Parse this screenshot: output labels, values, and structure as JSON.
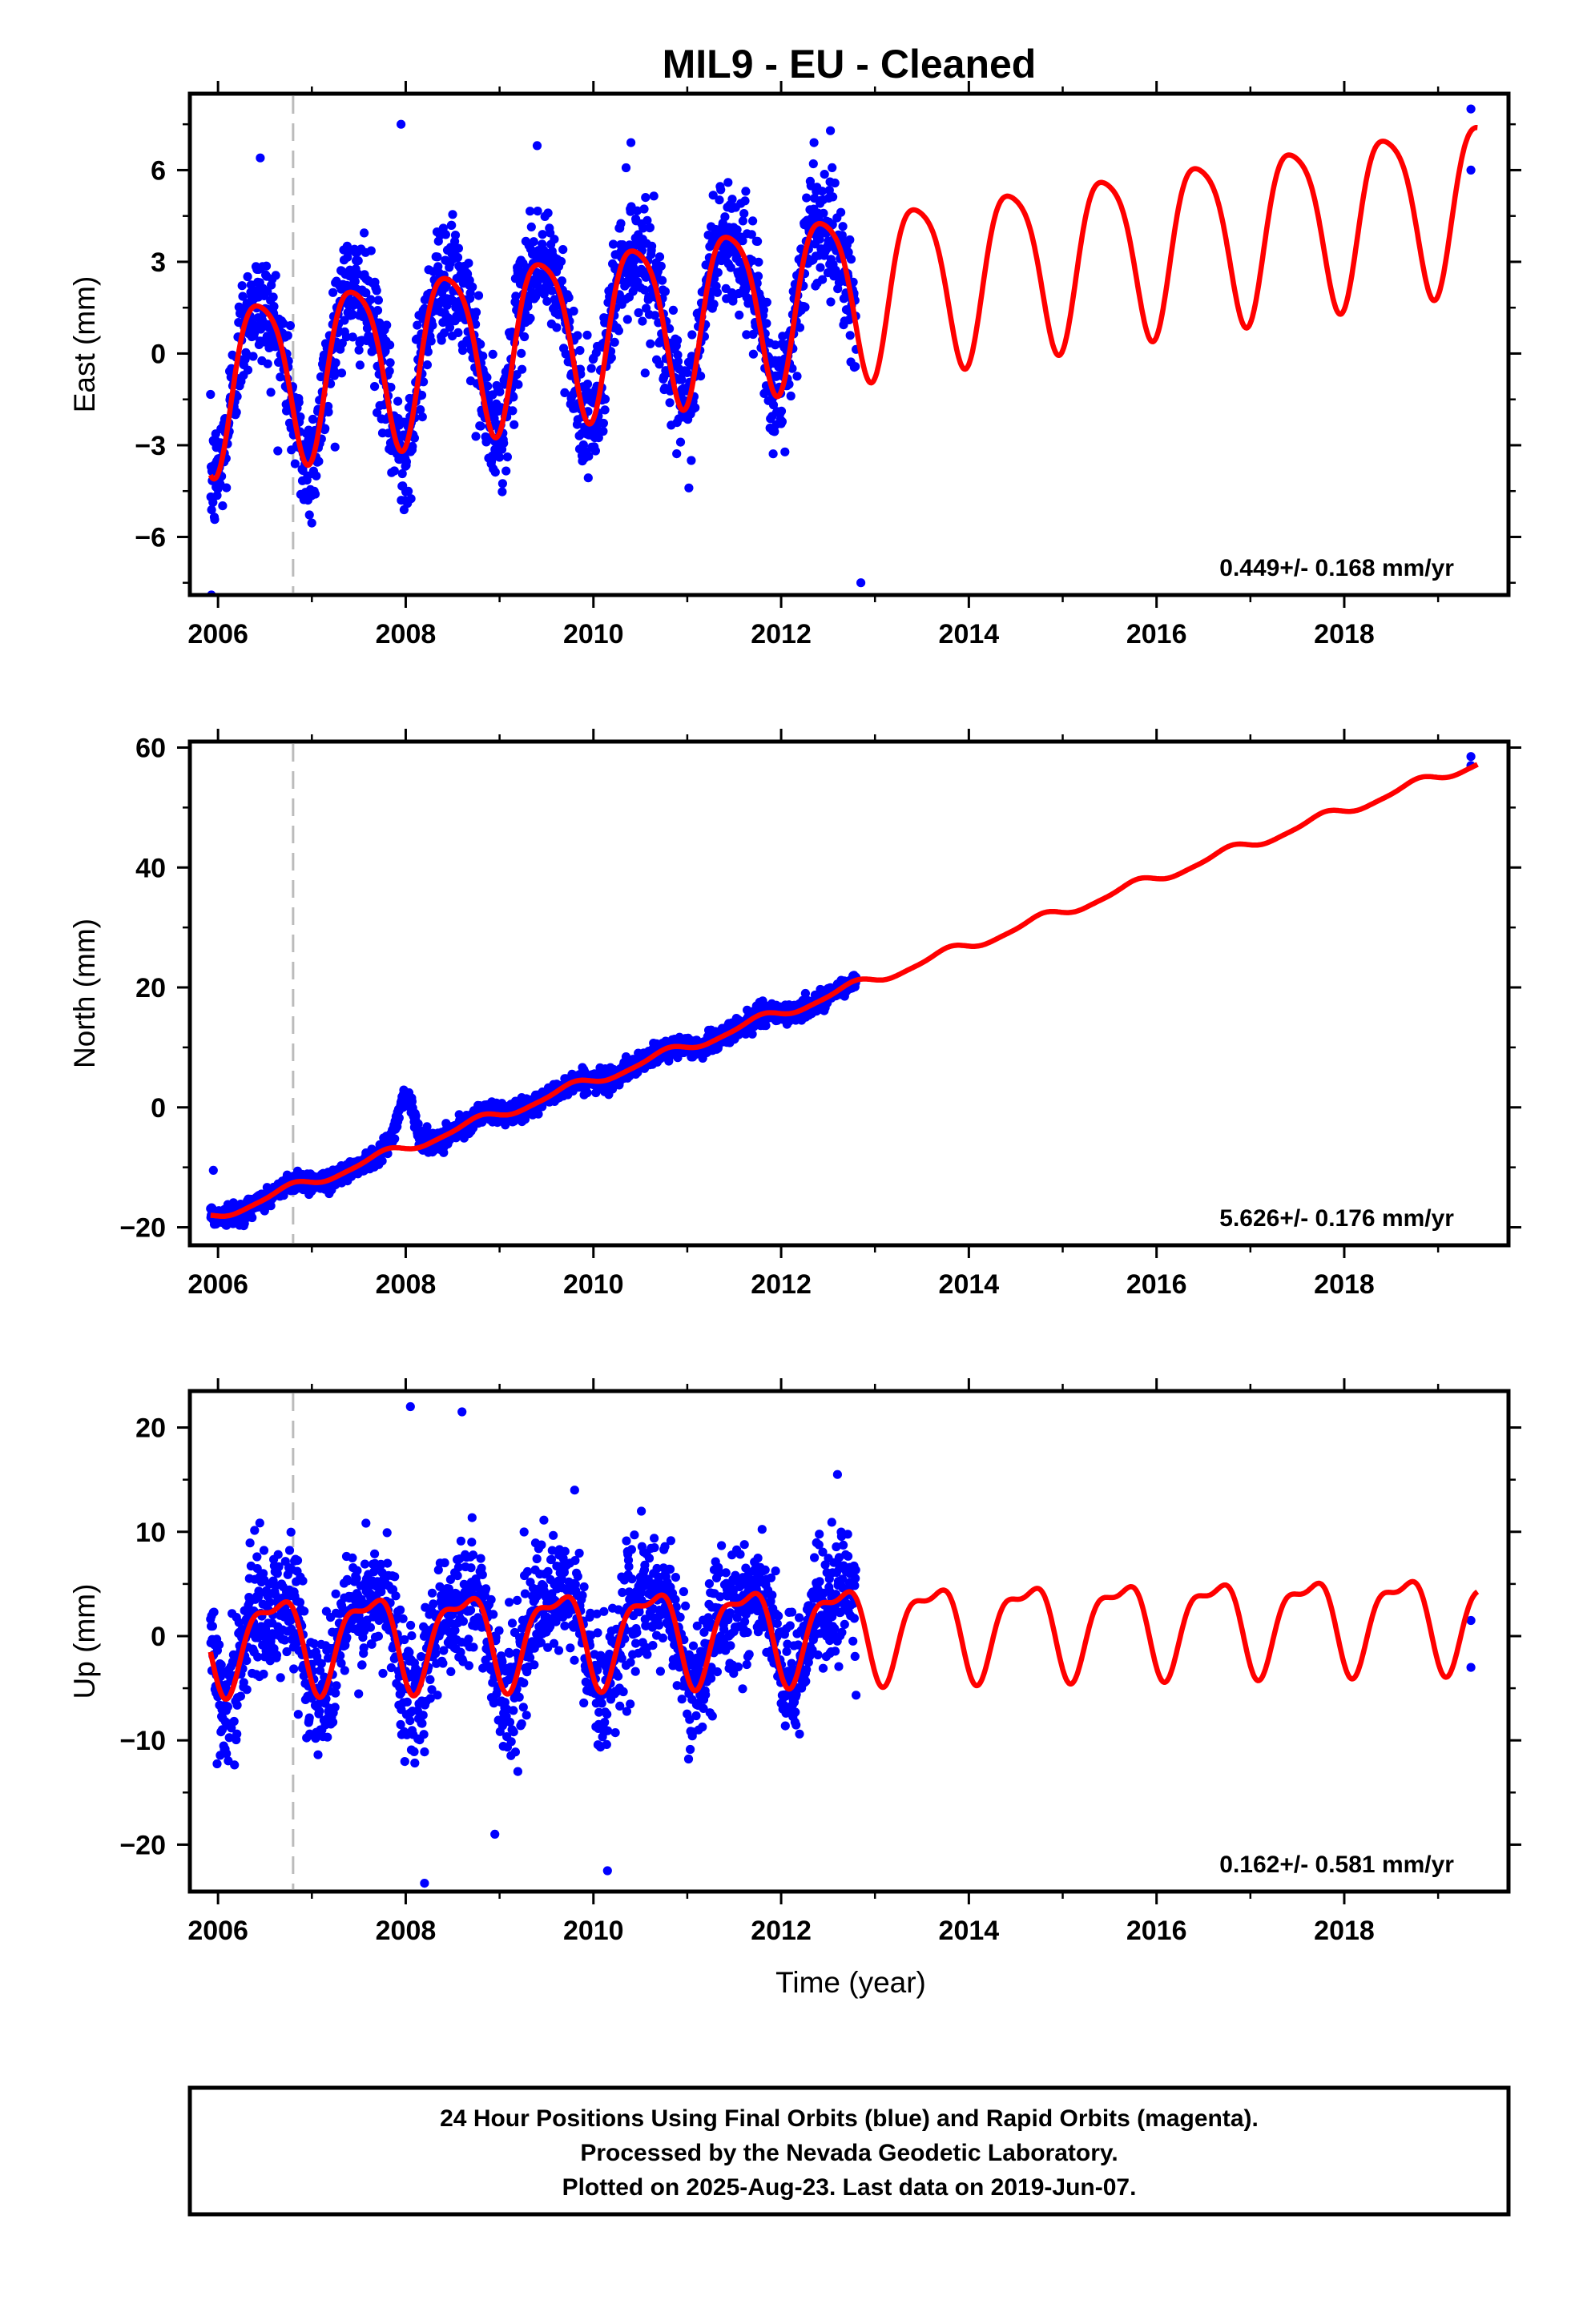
{
  "title": "MIL9  - EU - Cleaned",
  "colors": {
    "points": "#0000ff",
    "model": "#ff0000",
    "offset_line": "#bbbbbb"
  },
  "x_axis": {
    "range": [
      2005.7,
      2019.75
    ],
    "ticks": [
      2006,
      2008,
      2010,
      2012,
      2014,
      2016,
      2018
    ],
    "tick_labels": [
      "2006",
      "2008",
      "2010",
      "2012",
      "2014",
      "2016",
      "2018"
    ],
    "label": "Time (year)"
  },
  "offset_marker_x": 2006.8,
  "data_end_x": 2012.8,
  "footer": {
    "line1": "24 Hour Positions Using Final Orbits (blue) and Rapid Orbits (magenta).",
    "line2": "Processed by the Nevada Geodetic Laboratory.",
    "line3": "Plotted on 2025-Aug-23. Last data on 2019-Jun-07."
  },
  "chart_data": [
    {
      "type": "scatter",
      "ylabel": "East (mm)",
      "ylim": [
        -7.9,
        8.5
      ],
      "yticks": [
        -6,
        -3,
        0,
        3,
        6
      ],
      "ytick_labels": [
        "−6",
        "−3",
        "0",
        "3",
        "6"
      ],
      "rate": "0.449+/- 0.168 mm/yr",
      "model": {
        "offset": -0.9,
        "trend": 0.449,
        "annual_amp": 2.7,
        "annual_phase": 2006.2,
        "semi_amp": 0.5,
        "semi_phase": 2006.1
      },
      "outliers": [
        [
          2005.93,
          -7.9
        ],
        [
          2006.45,
          6.4
        ],
        [
          2007.95,
          7.5
        ],
        [
          2009.4,
          6.8
        ],
        [
          2010.4,
          6.9
        ],
        [
          2012.35,
          6.9
        ],
        [
          2012.85,
          -7.5
        ],
        [
          2019.35,
          8.0
        ],
        [
          2019.35,
          6.0
        ]
      ]
    },
    {
      "type": "scatter",
      "ylabel": "North (mm)",
      "ylim": [
        -23,
        61
      ],
      "yticks": [
        -20,
        0,
        20,
        40,
        60
      ],
      "ytick_labels": [
        "−20",
        "0",
        "20",
        "40",
        "60"
      ],
      "rate": "5.626+/- 0.176 mm/yr",
      "model": {
        "offset": -18.0,
        "trend": 5.626,
        "annual_amp": 0.8,
        "annual_phase": 2006.5,
        "semi_amp": 0.2,
        "semi_phase": 2006.2
      },
      "anomaly": {
        "start": 2007.6,
        "end": 2008.35,
        "peak": 2008.0,
        "amp": 9
      },
      "outliers": [
        [
          2019.35,
          58.5
        ],
        [
          2019.35,
          57.0
        ],
        [
          2005.95,
          -10.5
        ]
      ]
    },
    {
      "type": "scatter",
      "ylabel": "Up (mm)",
      "ylim": [
        -24.5,
        23.5
      ],
      "yticks": [
        -20,
        -10,
        0,
        10,
        20
      ],
      "ytick_labels": [
        "−20",
        "−10",
        "0",
        "10",
        "20"
      ],
      "rate": "0.162+/- 0.581 mm/yr",
      "model": {
        "offset": -0.3,
        "trend": 0.162,
        "annual_amp": 4.2,
        "annual_phase": 2006.35,
        "semi_amp": 1.6,
        "semi_phase": 2006.2
      },
      "outliers": [
        [
          2008.05,
          22.0
        ],
        [
          2008.6,
          21.5
        ],
        [
          2008.2,
          -23.7
        ],
        [
          2008.95,
          -19.0
        ],
        [
          2010.15,
          -22.5
        ],
        [
          2009.8,
          14.0
        ],
        [
          2012.6,
          15.5
        ],
        [
          2019.35,
          1.5
        ],
        [
          2019.35,
          -3.0
        ]
      ]
    }
  ]
}
